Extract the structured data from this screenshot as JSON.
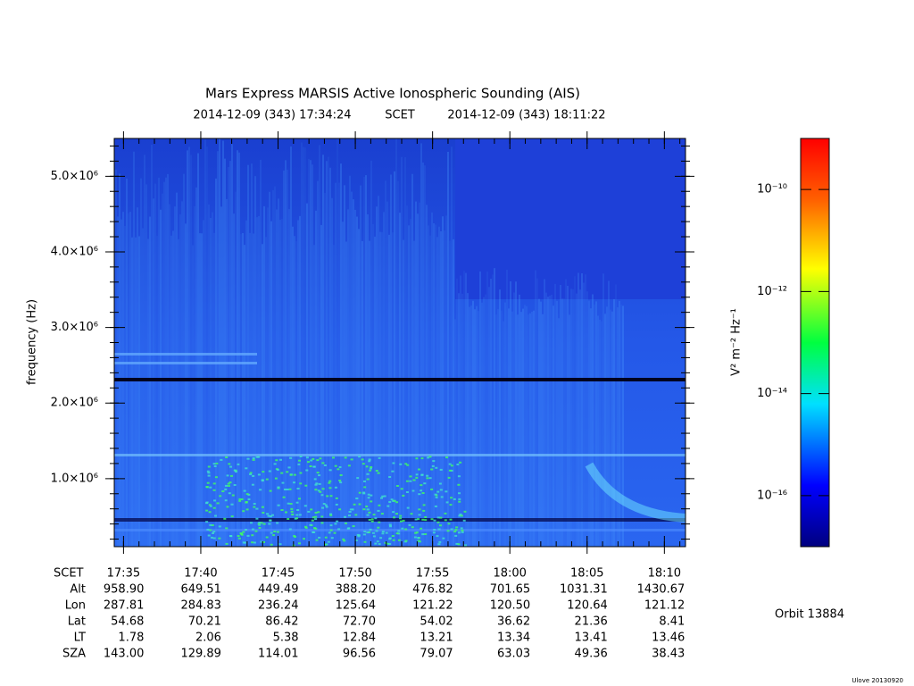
{
  "chart_data": {
    "type": "spectrogram",
    "title": "Mars Express MARSIS Active Ionospheric Sounding (AIS)",
    "start_time": "2014-12-09 (343) 17:34:24",
    "time_system": "SCET",
    "end_time": "2014-12-09 (343) 18:11:22",
    "y_label": "frequency (Hz)",
    "xlim": [
      "17:34:24",
      "18:11:22"
    ],
    "xticks": [
      "17:35",
      "17:40",
      "17:45",
      "17:50",
      "17:55",
      "18:00",
      "18:05",
      "18:10"
    ],
    "ylim": [
      100000,
      5500000
    ],
    "yticks": [
      {
        "value": 1000000,
        "label": "1.0×10⁶"
      },
      {
        "value": 2000000,
        "label": "2.0×10⁶"
      },
      {
        "value": 3000000,
        "label": "3.0×10⁶"
      },
      {
        "value": 4000000,
        "label": "4.0×10⁶"
      },
      {
        "value": 5000000,
        "label": "5.0×10⁶"
      }
    ],
    "colorbar": {
      "label": "V² m⁻² Hz⁻¹",
      "log_scale": true,
      "clim": [
        1e-17,
        1e-09
      ],
      "ticks": [
        {
          "value": 1e-10,
          "label": "10⁻¹⁰"
        },
        {
          "value": 1e-12,
          "label": "10⁻¹²"
        },
        {
          "value": 1e-14,
          "label": "10⁻¹⁴"
        },
        {
          "value": 1e-16,
          "label": "10⁻¹⁶"
        }
      ]
    },
    "ephemeris": {
      "time_label": "SCET",
      "rows": [
        {
          "label": "Alt",
          "values": [
            "958.90",
            "649.51",
            "449.49",
            "388.20",
            "476.82",
            "701.65",
            "1031.31",
            "1430.67"
          ]
        },
        {
          "label": "Lon",
          "values": [
            "287.81",
            "284.83",
            "236.24",
            "125.64",
            "121.22",
            "120.50",
            "120.64",
            "121.12"
          ]
        },
        {
          "label": "Lat",
          "values": [
            "54.68",
            "70.21",
            "86.42",
            "72.70",
            "54.02",
            "36.62",
            "21.36",
            "8.41"
          ]
        },
        {
          "label": "LT",
          "values": [
            "1.78",
            "2.06",
            "5.38",
            "12.84",
            "13.21",
            "13.34",
            "13.41",
            "13.46"
          ]
        },
        {
          "label": "SZA",
          "values": [
            "143.00",
            "129.89",
            "114.01",
            "96.56",
            "79.07",
            "63.03",
            "49.36",
            "38.43"
          ]
        }
      ]
    },
    "orbit": "Orbit 13884",
    "footer": "Ulove 20130920"
  }
}
